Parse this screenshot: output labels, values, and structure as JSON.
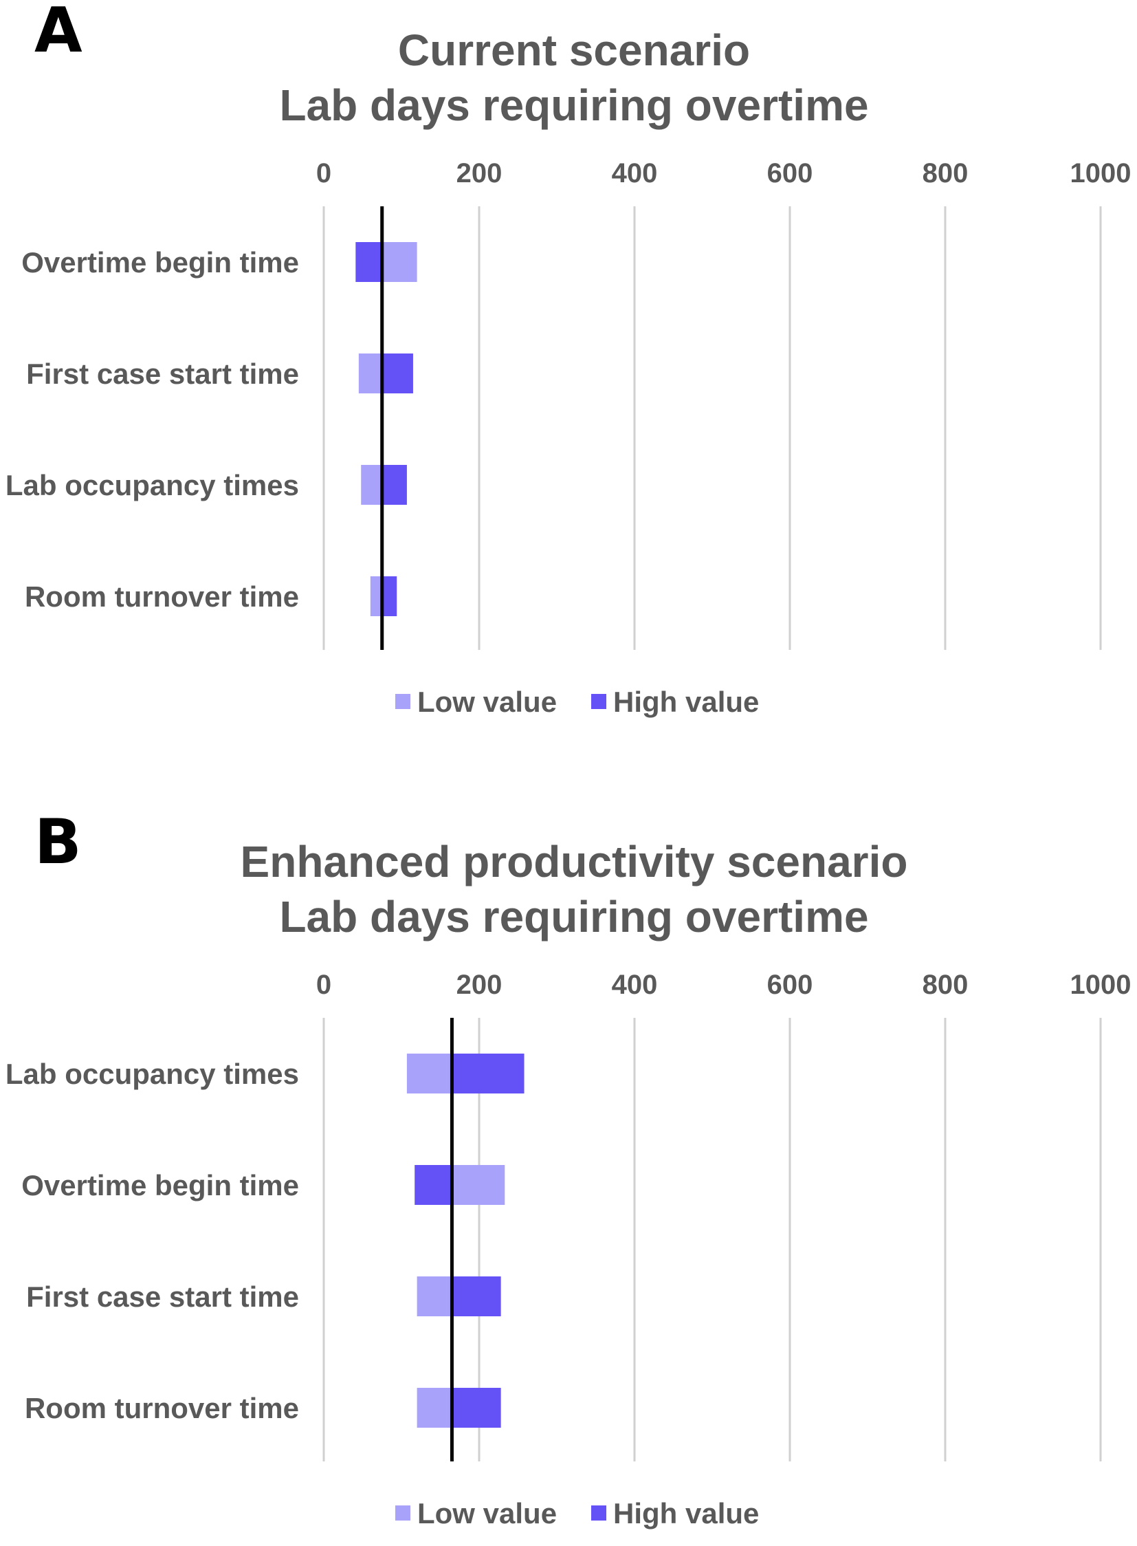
{
  "chart_data": [
    {
      "panel": "A",
      "type": "bar",
      "subtype": "tornado",
      "title": [
        "Current scenario",
        "Lab days requiring overtime"
      ],
      "xlim": [
        0,
        1000
      ],
      "xticks": [
        "0",
        "200",
        "400",
        "600",
        "800",
        "1000"
      ],
      "grid": true,
      "baseline": 75,
      "legend_position": "bottom",
      "categories": [
        "Overtime begin time",
        "First case start time",
        "Lab occupancy times",
        "Room turnover time"
      ],
      "series": [
        {
          "name": "Low value",
          "color": "#a8a2fb",
          "values": [
            120,
            45,
            48,
            60
          ]
        },
        {
          "name": "High value",
          "color": "#6452f7",
          "values": [
            41,
            115,
            107,
            94
          ]
        }
      ]
    },
    {
      "panel": "B",
      "type": "bar",
      "subtype": "tornado",
      "title": [
        "Enhanced productivity scenario",
        "Lab days requiring overtime"
      ],
      "xlim": [
        0,
        1000
      ],
      "xticks": [
        "0",
        "200",
        "400",
        "600",
        "800",
        "1000"
      ],
      "grid": true,
      "baseline": 165,
      "legend_position": "bottom",
      "categories": [
        "Lab occupancy times",
        "Overtime begin time",
        "First case start time",
        "Room turnover time"
      ],
      "series": [
        {
          "name": "Low value",
          "color": "#a8a2fb",
          "values": [
            107,
            233,
            120,
            120
          ]
        },
        {
          "name": "High value",
          "color": "#6452f7",
          "values": [
            258,
            117,
            228,
            228
          ]
        }
      ]
    }
  ]
}
